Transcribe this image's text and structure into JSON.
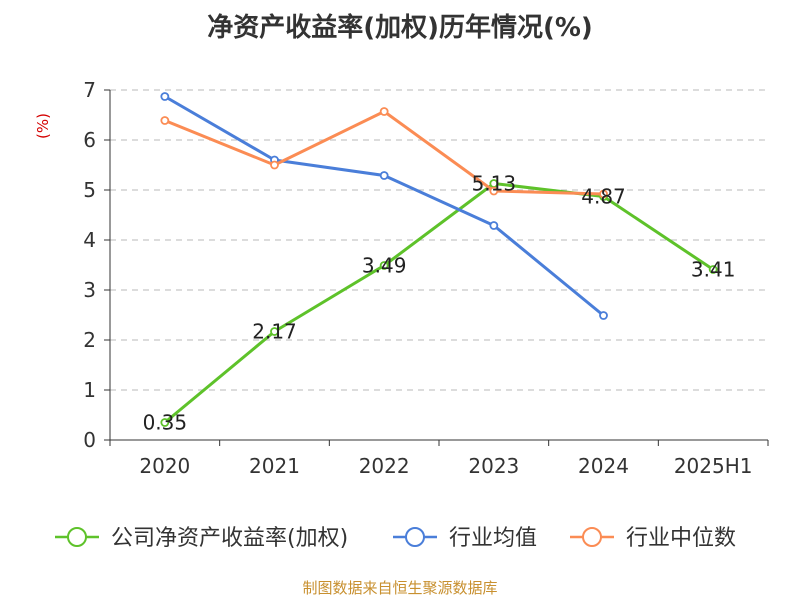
{
  "chart_data": {
    "type": "line",
    "title": "净资产收益率(加权)历年情况(%)",
    "ylabel": "(%)",
    "xlabel": "",
    "categories": [
      "2020",
      "2021",
      "2022",
      "2023",
      "2024",
      "2025H1"
    ],
    "ylim": [
      0,
      7
    ],
    "yticks": [
      "0",
      "1",
      "2",
      "3",
      "4",
      "5",
      "6",
      "7"
    ],
    "grid": true,
    "legend_position": "bottom",
    "series": [
      {
        "name": "公司净资产收益率(加权)",
        "color": "#5ec22a",
        "values": [
          0.35,
          2.17,
          3.49,
          5.13,
          4.87,
          3.41
        ],
        "labels": [
          "0.35",
          "2.17",
          "3.49",
          "5.13",
          "4.87",
          "3.41"
        ]
      },
      {
        "name": "行业均值",
        "color": "#4a7ed9",
        "values": [
          6.87,
          5.6,
          5.29,
          4.29,
          2.49,
          null
        ]
      },
      {
        "name": "行业中位数",
        "color": "#fb8c54",
        "values": [
          6.39,
          5.5,
          6.57,
          4.98,
          4.92,
          null
        ]
      }
    ]
  },
  "source": "制图数据来自恒生聚源数据库"
}
